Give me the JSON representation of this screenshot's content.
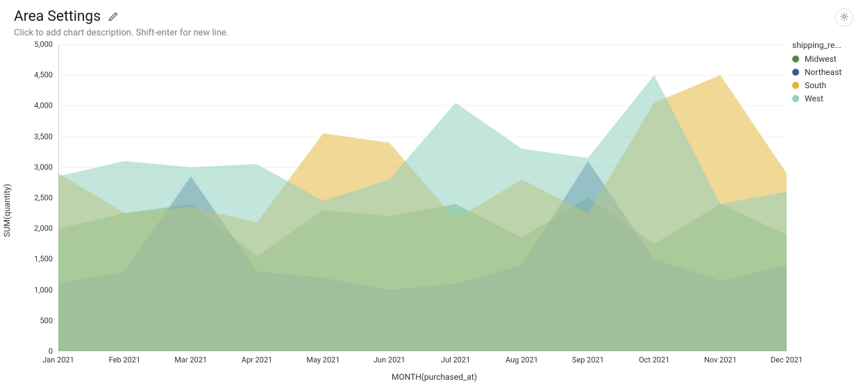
{
  "header": {
    "title": "Area Settings",
    "description_placeholder": "Click to add chart description. Shift-enter for new line."
  },
  "chart": {
    "type": "area",
    "xlabel": "MONTH(purchased_at)",
    "ylabel": "SUM(quantity)",
    "ylim": [
      0,
      5000
    ],
    "ytick_step": 500,
    "yticks": [
      0,
      500,
      1000,
      1500,
      2000,
      2500,
      3000,
      3500,
      4000,
      4500,
      5000
    ],
    "ytick_labels": [
      "0",
      "500",
      "1,000",
      "1,500",
      "2,000",
      "2,500",
      "3,000",
      "3,500",
      "4,000",
      "4,500",
      "5,000"
    ],
    "categories": [
      "Jan 2021",
      "Feb 2021",
      "Mar 2021",
      "Apr 2021",
      "May 2021",
      "Jun 2021",
      "Jul 2021",
      "Aug 2021",
      "Sep 2021",
      "Oct 2021",
      "Nov 2021",
      "Dec 2021"
    ],
    "legend_title": "shipping_re...",
    "legend_position": "right",
    "background_color": "#ffffff",
    "grid_color": "#f0f0f0",
    "axis_color": "#d0d0d0",
    "label_fontsize": 12,
    "tick_fontsize": 11,
    "title_fontsize": 21,
    "area_opacity": 0.55,
    "series": [
      {
        "name": "Midwest",
        "color": "#6aa952",
        "swatch_color": "#4d8a3b",
        "values": [
          2000,
          2250,
          2400,
          1550,
          2300,
          2200,
          2400,
          1850,
          2500,
          1750,
          2400,
          1900
        ]
      },
      {
        "name": "Northeast",
        "color": "#4a6ea8",
        "swatch_color": "#3b5a8f",
        "values": [
          1100,
          1300,
          2850,
          1300,
          1200,
          1000,
          1100,
          1400,
          3100,
          1500,
          1150,
          1400
        ]
      },
      {
        "name": "South",
        "color": "#e5b83f",
        "swatch_color": "#e0b33c",
        "values": [
          2900,
          2250,
          2350,
          2100,
          3550,
          3400,
          2150,
          2800,
          2250,
          4050,
          4500,
          2900
        ]
      },
      {
        "name": "West",
        "color": "#8fd0c0",
        "swatch_color": "#8fd0c0",
        "values": [
          2850,
          3100,
          3000,
          3050,
          2450,
          2800,
          4050,
          3300,
          3150,
          4500,
          2400,
          2600
        ]
      }
    ]
  }
}
